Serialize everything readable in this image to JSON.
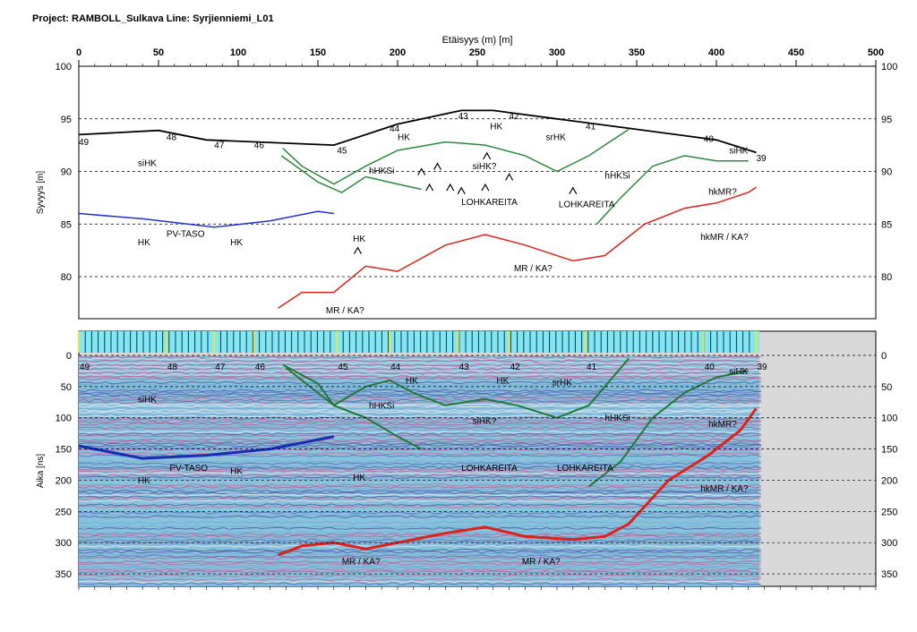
{
  "header": {
    "title": "Project: RAMBOLL_Sulkava  Line: Syrjienniemi_L01"
  },
  "chart_data": {
    "type": "line",
    "xlabel": "Etäisyys (m) [m]",
    "xlim": [
      0,
      500
    ],
    "xticks": [
      0,
      50,
      100,
      150,
      200,
      250,
      300,
      350,
      400,
      450,
      500
    ],
    "profile": {
      "ylabel": "Syvyys [m]",
      "ylim": [
        76,
        100
      ],
      "yticks": [
        80,
        85,
        90,
        95,
        100
      ],
      "series": [
        {
          "color": "#000000",
          "x": [
            0,
            50,
            80,
            160,
            200,
            240,
            260,
            300,
            340,
            400,
            425
          ],
          "y": [
            93.5,
            93.9,
            93.0,
            92.5,
            94.5,
            95.8,
            95.8,
            95.0,
            94.2,
            93.0,
            91.8
          ]
        },
        {
          "color": "#2d8a3c",
          "x": [
            128,
            140,
            160,
            180,
            200,
            230,
            255,
            280,
            300,
            320,
            345
          ],
          "y": [
            92.2,
            90.5,
            88.8,
            90.5,
            92.0,
            92.8,
            92.5,
            91.5,
            90.0,
            91.5,
            94.0
          ]
        },
        {
          "color": "#2d8a3c",
          "x": [
            127,
            150,
            165,
            180,
            200,
            215
          ],
          "y": [
            91.5,
            89.0,
            88.0,
            89.5,
            88.8,
            88.3
          ]
        },
        {
          "color": "#2d8a3c",
          "x": [
            325,
            340,
            360,
            380,
            400,
            415,
            420
          ],
          "y": [
            85.0,
            87.5,
            90.5,
            91.5,
            91.0,
            91.0,
            91.0
          ]
        },
        {
          "color": "#2233cc",
          "x": [
            0,
            40,
            85,
            120,
            150,
            160
          ],
          "y": [
            86.0,
            85.5,
            84.7,
            85.3,
            86.2,
            86.0
          ]
        },
        {
          "color": "#e0201b",
          "x": [
            125,
            140,
            160,
            180,
            200,
            230,
            255,
            280,
            310,
            330,
            355,
            380,
            400,
            420,
            425
          ],
          "y": [
            77.0,
            78.5,
            78.5,
            81.0,
            80.5,
            83.0,
            84.0,
            83.0,
            81.5,
            82.0,
            85.0,
            86.5,
            87.0,
            88.0,
            88.5
          ]
        }
      ],
      "labels": [
        {
          "t": "49",
          "x": 0,
          "y": 92.5
        },
        {
          "t": "48",
          "x": 55,
          "y": 93.0
        },
        {
          "t": "47",
          "x": 85,
          "y": 92.2
        },
        {
          "t": "46",
          "x": 110,
          "y": 92.2
        },
        {
          "t": "45",
          "x": 162,
          "y": 91.7
        },
        {
          "t": "44",
          "x": 195,
          "y": 93.8
        },
        {
          "t": "43",
          "x": 238,
          "y": 95.0
        },
        {
          "t": "42",
          "x": 270,
          "y": 95.0
        },
        {
          "t": "41",
          "x": 318,
          "y": 94.0
        },
        {
          "t": "40",
          "x": 392,
          "y": 92.8
        },
        {
          "t": "39",
          "x": 425,
          "y": 91.0
        },
        {
          "t": "HK",
          "x": 200,
          "y": 93.0
        },
        {
          "t": "HK",
          "x": 258,
          "y": 94.0
        },
        {
          "t": "srHK",
          "x": 293,
          "y": 93.0
        },
        {
          "t": "siHK",
          "x": 37,
          "y": 90.5
        },
        {
          "t": "siHK",
          "x": 408,
          "y": 91.7
        },
        {
          "t": "siHK?",
          "x": 247,
          "y": 90.2
        },
        {
          "t": "hHKSi",
          "x": 182,
          "y": 89.8
        },
        {
          "t": "hHKSi",
          "x": 330,
          "y": 89.3
        },
        {
          "t": "LOHKAREITA",
          "x": 240,
          "y": 86.8
        },
        {
          "t": "LOHKAREITA",
          "x": 301,
          "y": 86.6
        },
        {
          "t": "hkMR?",
          "x": 395,
          "y": 87.8
        },
        {
          "t": "PV-TASO",
          "x": 55,
          "y": 83.8
        },
        {
          "t": "HK",
          "x": 37,
          "y": 83.0
        },
        {
          "t": "HK",
          "x": 95,
          "y": 83.0
        },
        {
          "t": "HK",
          "x": 172,
          "y": 83.3
        },
        {
          "t": "hkMR / KA?",
          "x": 390,
          "y": 83.5
        },
        {
          "t": "MR / KA?",
          "x": 273,
          "y": 80.5
        },
        {
          "t": "MR / KA?",
          "x": 155,
          "y": 76.5
        }
      ],
      "boulders": [
        [
          215,
          90
        ],
        [
          225,
          90.5
        ],
        [
          220,
          88.5
        ],
        [
          233,
          88.5
        ],
        [
          240,
          88.2
        ],
        [
          255,
          88.5
        ],
        [
          256,
          91.5
        ],
        [
          270,
          89.5
        ],
        [
          310,
          88.2
        ],
        [
          175,
          82.5
        ]
      ]
    },
    "radargram": {
      "ylabel": "Aika [ns]",
      "ylim": [
        370,
        0
      ],
      "yticks": [
        0,
        50,
        100,
        150,
        200,
        250,
        300,
        350
      ],
      "data_extent_x": 427,
      "labels": [
        {
          "t": "siHK",
          "x": 37,
          "y": 75
        },
        {
          "t": "hHKSi",
          "x": 182,
          "y": 85
        },
        {
          "t": "HK",
          "x": 205,
          "y": 45
        },
        {
          "t": "HK",
          "x": 262,
          "y": 45
        },
        {
          "t": "srHK",
          "x": 297,
          "y": 48
        },
        {
          "t": "siHK",
          "x": 408,
          "y": 30
        },
        {
          "t": "siHK?",
          "x": 247,
          "y": 110
        },
        {
          "t": "hHKSi",
          "x": 330,
          "y": 105
        },
        {
          "t": "hkMR?",
          "x": 395,
          "y": 115
        },
        {
          "t": "LOHKAREITA",
          "x": 240,
          "y": 185
        },
        {
          "t": "LOHKAREITA",
          "x": 300,
          "y": 185
        },
        {
          "t": "PV-TASO",
          "x": 57,
          "y": 185
        },
        {
          "t": "HK",
          "x": 95,
          "y": 190
        },
        {
          "t": "HK",
          "x": 37,
          "y": 205
        },
        {
          "t": "HK",
          "x": 172,
          "y": 200
        },
        {
          "t": "hkMR / KA?",
          "x": 390,
          "y": 218
        },
        {
          "t": "MR / KA?",
          "x": 165,
          "y": 335
        },
        {
          "t": "MR / KA?",
          "x": 278,
          "y": 335
        }
      ],
      "markers": [
        {
          "t": "49",
          "x": 0
        },
        {
          "t": "48",
          "x": 55
        },
        {
          "t": "47",
          "x": 85
        },
        {
          "t": "46",
          "x": 110
        },
        {
          "t": "45",
          "x": 162
        },
        {
          "t": "44",
          "x": 195
        },
        {
          "t": "43",
          "x": 238
        },
        {
          "t": "42",
          "x": 270
        },
        {
          "t": "41",
          "x": 318
        },
        {
          "t": "40",
          "x": 392
        },
        {
          "t": "39",
          "x": 425
        }
      ]
    }
  }
}
